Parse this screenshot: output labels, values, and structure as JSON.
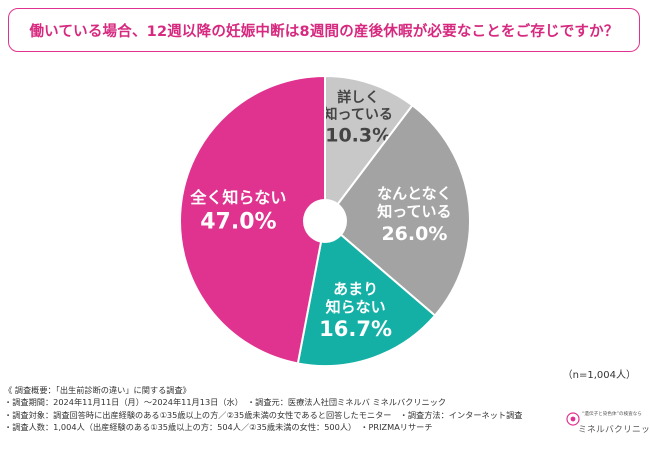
{
  "title": "働いている場合、12週以降の妊娠中断は8週間の産後休暇が必要なことをご存じですか？",
  "sample_note": "（n=1,004人）",
  "footnotes": [
    "《 調査概要：「出生前診断の違い」に関する調査》",
    "・調査期間：2024年11月11日（月）〜2024年11月13日（水）　・調査元：医療法人社団ミネルバ ミネルバクリニック",
    "・調査対象：調査回答時に出産経験のある①35歳以上の方／②35歳未満の女性であると回答したモニター　・調査方法：インターネット調査",
    "・調査人数：1,004人（出産経験のある①35歳以上の方：504人／②35歳未満の女性：500人）　・PRIZMAリサーチ"
  ],
  "logo": {
    "tagline": "“遺伝子と染色体”の検査なら",
    "name": "ミネルバクリニック"
  },
  "colors": {
    "accent": "#e0338f",
    "title_text": "#d6297f"
  },
  "chart_data": {
    "type": "pie",
    "donut": true,
    "start_angle_deg": 0,
    "direction": "clockwise",
    "slices": [
      {
        "label": [
          "詳しく",
          "知っている"
        ],
        "value": 10.3,
        "value_text": "10.3%",
        "color": "#c8c8c8",
        "label_color": "#444444"
      },
      {
        "label": [
          "なんとなく",
          "知っている"
        ],
        "value": 26.0,
        "value_text": "26.0%",
        "color": "#a3a3a3",
        "label_color": "#ffffff"
      },
      {
        "label": [
          "あまり",
          "知らない"
        ],
        "value": 16.7,
        "value_text": "16.7%",
        "color": "#14b0a6",
        "label_color": "#ffffff"
      },
      {
        "label": [
          "全く知らない"
        ],
        "value": 47.0,
        "value_text": "47.0%",
        "color": "#e0338f",
        "label_color": "#ffffff"
      }
    ]
  }
}
